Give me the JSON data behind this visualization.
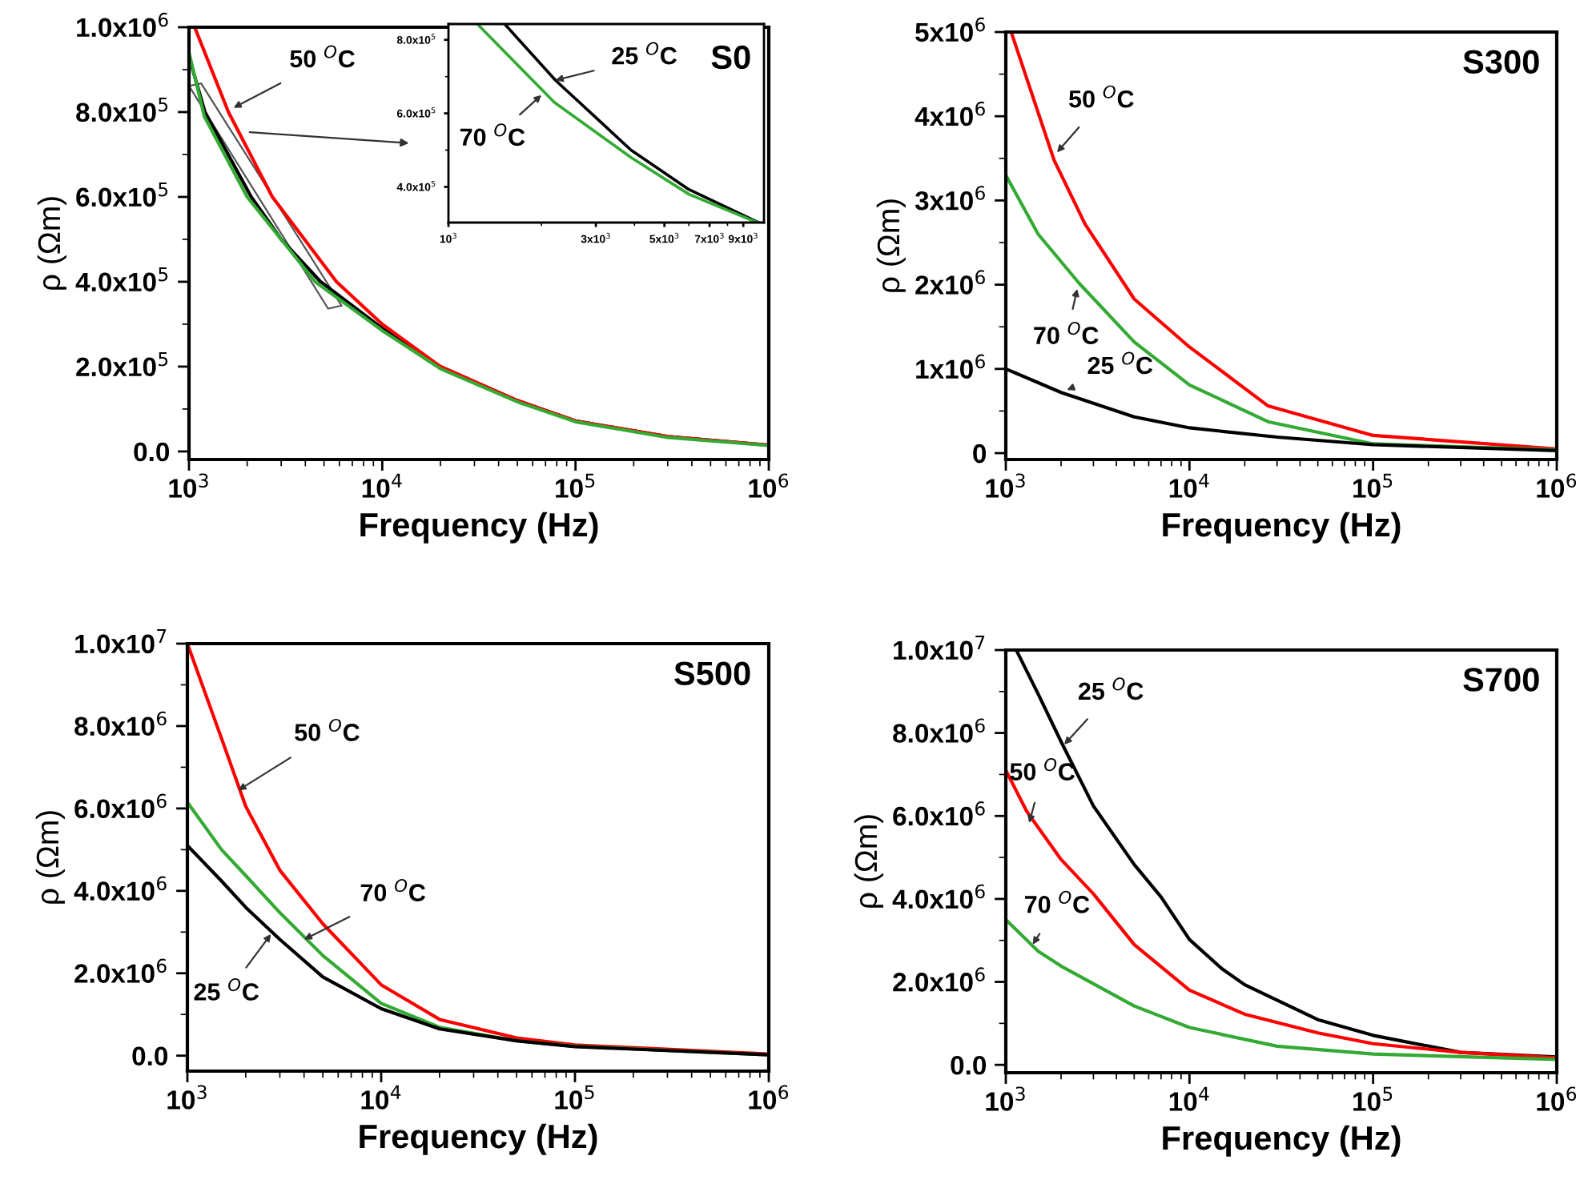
{
  "chart_data": [
    {
      "type": "line",
      "title": "S0",
      "xlabel": "Frequency (Hz)",
      "ylabel": "ρ (Ωm)",
      "log": "x",
      "grid": false,
      "xlim": [
        1000,
        1000000
      ],
      "xticks": [
        {
          "value": 1000,
          "label": "10$^{3}$"
        },
        {
          "value": 10000,
          "label": "10$^{4}$"
        },
        {
          "value": 100000,
          "label": "10$^{5}$"
        },
        {
          "value": 1000000,
          "label": "10$^{6}$"
        }
      ],
      "ylim": [
        -19000,
        1000000
      ],
      "yticks": [
        {
          "value": 0,
          "label": "0.0"
        },
        {
          "value": 200000,
          "label": "2.0x10$^{5}$"
        },
        {
          "value": 400000,
          "label": "4.0x10$^{5}$"
        },
        {
          "value": 600000,
          "label": "6.0x10$^{5}$"
        },
        {
          "value": 800000,
          "label": "8.0x10$^{5}$"
        },
        {
          "value": 1000000,
          "label": "1.0x10$^{6}$"
        }
      ],
      "series": [
        {
          "color": "#000000",
          "x": [
            1000,
            1210,
            2100,
            3000,
            4800,
            10000,
            20000,
            50000,
            100000,
            300000,
            1000000
          ],
          "values": [
            930000,
            800000,
            600000,
            500000,
            400000,
            290000,
            200000,
            120000,
            72000,
            35000,
            15000
          ]
        },
        {
          "color": "#ff0000",
          "x": [
            1070,
            1600,
            2700,
            5800,
            10000,
            20000,
            50000,
            100000,
            300000,
            1000000
          ],
          "values": [
            1000000,
            800000,
            600000,
            400000,
            300000,
            200000,
            120000,
            72000,
            35000,
            15000
          ]
        },
        {
          "color": "#33aa33",
          "x": [
            1000,
            1200,
            2000,
            4500,
            10000,
            20000,
            50000,
            100000,
            300000,
            1000000
          ],
          "values": [
            940000,
            790000,
            600000,
            400000,
            285000,
            195000,
            117000,
            70000,
            33000,
            14000
          ]
        }
      ],
      "annotations": [
        {
          "text": "50 $^{O}$C",
          "x": 1700,
          "y": 810000
        }
      ]
    },
    {
      "type": "line",
      "log": "x",
      "grid": false,
      "xlim": [
        1000,
        10500
      ],
      "xticks": [
        {
          "value": 1000,
          "label": "10$^{3}$"
        },
        {
          "value": 3000,
          "label": "3x10$^{3}$"
        },
        {
          "value": 5000,
          "label": "5x10$^{3}$"
        },
        {
          "value": 7000,
          "label": "7x10$^{3}$"
        },
        {
          "value": 9000,
          "label": "9x10$^{3}$"
        }
      ],
      "ylim": [
        303000,
        843000
      ],
      "yticks": [
        {
          "value": 400000,
          "label": "4.0x10$^{5}$"
        },
        {
          "value": 600000,
          "label": "6.0x10$^{5}$"
        },
        {
          "value": 800000,
          "label": "8.0x10$^{5}$"
        }
      ],
      "series": [
        {
          "color": "#000000",
          "x": [
            1520,
            2220,
            3900,
            6000,
            10100
          ],
          "values": [
            843000,
            690000,
            500000,
            393000,
            303000
          ]
        },
        {
          "color": "#33aa33",
          "x": [
            1240,
            2200,
            3900,
            6000,
            10000
          ],
          "values": [
            843000,
            630000,
            480000,
            380000,
            303000
          ]
        }
      ],
      "annotations": [
        {
          "text": "25 $^{O}$C",
          "x": 2220,
          "y": 690000
        },
        {
          "text": "70 $^{O}$C",
          "x": 2000,
          "y": 650000
        }
      ]
    },
    {
      "type": "line",
      "title": "S300",
      "xlabel": "Frequency (Hz)",
      "ylabel": "ρ (Ωm)",
      "log": "x",
      "grid": false,
      "xlim": [
        1000,
        1000000
      ],
      "xticks": [
        {
          "value": 1000,
          "label": "10$^{3}$"
        },
        {
          "value": 10000,
          "label": "10$^{4}$"
        },
        {
          "value": 100000,
          "label": "10$^{5}$"
        },
        {
          "value": 1000000,
          "label": "10$^{6}$"
        }
      ],
      "ylim": [
        -76000,
        5000000
      ],
      "yticks": [
        0,
        {
          "value": 1000000,
          "label": "1x10$^{6}$"
        },
        {
          "value": 2000000,
          "label": "2x10$^{6}$"
        },
        {
          "value": 3000000,
          "label": "3x10$^{6}$"
        },
        {
          "value": 4000000,
          "label": "4x10$^{6}$"
        },
        {
          "value": 5000000,
          "label": "5x10$^{6}$"
        }
      ],
      "series": [
        {
          "color": "#ff0000",
          "x": [
            1070,
            1830,
            2700,
            5000,
            10000,
            26800,
            100000,
            1000000
          ],
          "values": [
            5000000,
            3480000,
            2720000,
            1830000,
            1260000,
            560000,
            210000,
            50000
          ]
        },
        {
          "color": "#33aa33",
          "x": [
            1000,
            1500,
            2500,
            5000,
            10000,
            27000,
            100000,
            1000000
          ],
          "values": [
            3300000,
            2600000,
            2020000,
            1320000,
            810000,
            370000,
            110000,
            40000
          ]
        },
        {
          "color": "#000000",
          "x": [
            1000,
            2000,
            5000,
            10000,
            30000,
            100000,
            1000000
          ],
          "values": [
            1000000,
            720000,
            430000,
            300000,
            190000,
            100000,
            30000
          ]
        }
      ],
      "annotations": [
        {
          "text": "50 $^{O}$C",
          "x": 1900,
          "y": 3570000
        },
        {
          "text": "70 $^{O}$C",
          "x": 2450,
          "y": 1950000
        },
        {
          "text": "25 $^{O}$C",
          "x": 2150,
          "y": 750000
        }
      ]
    },
    {
      "type": "line",
      "title": "S500",
      "xlabel": "Frequency (Hz)",
      "ylabel": "ρ (Ωm)",
      "log": "x",
      "grid": false,
      "xlim": [
        1000,
        1000000
      ],
      "xticks": [
        {
          "value": 1000,
          "label": "10$^{3}$"
        },
        {
          "value": 10000,
          "label": "10$^{4}$"
        },
        {
          "value": 100000,
          "label": "10$^{5}$"
        },
        {
          "value": 1000000,
          "label": "10$^{6}$"
        }
      ],
      "ylim": [
        -375000,
        10000000
      ],
      "yticks": [
        {
          "value": 0,
          "label": "0.0"
        },
        {
          "value": 2000000,
          "label": "2.0x10$^{6}$"
        },
        {
          "value": 4000000,
          "label": "4.0x10$^{6}$"
        },
        {
          "value": 6000000,
          "label": "6.0x10$^{6}$"
        },
        {
          "value": 8000000,
          "label": "8.0x10$^{6}$"
        },
        {
          "value": 10000000,
          "label": "1.0x10$^{7}$"
        }
      ],
      "series": [
        {
          "color": "#ff0000",
          "x": [
            1000,
            1500,
            2000,
            3000,
            5000,
            10000,
            20000,
            50000,
            100000,
            1000000
          ],
          "values": [
            10000000,
            7700000,
            6050000,
            4500000,
            3200000,
            1720000,
            880000,
            430000,
            260000,
            40000
          ]
        },
        {
          "color": "#33aa33",
          "x": [
            1000,
            1500,
            2000,
            3000,
            5000,
            10000,
            20000,
            50000,
            100000,
            1000000
          ],
          "values": [
            6150000,
            5000000,
            4370000,
            3470000,
            2430000,
            1270000,
            690000,
            360000,
            230000,
            20000
          ]
        },
        {
          "color": "#000000",
          "x": [
            1000,
            1500,
            2000,
            3000,
            5000,
            10000,
            20000,
            50000,
            100000,
            1000000
          ],
          "values": [
            5100000,
            4240000,
            3600000,
            2820000,
            1910000,
            1140000,
            650000,
            360000,
            220000,
            20000
          ]
        }
      ],
      "annotations": [
        {
          "text": "50 $^{O}$C",
          "x": 1830,
          "y": 6440000
        },
        {
          "text": "70 $^{O}$C",
          "x": 4000,
          "y": 2820000
        },
        {
          "text": "25 $^{O}$C",
          "x": 2700,
          "y": 2950000
        }
      ]
    },
    {
      "type": "line",
      "title": "S700",
      "xlabel": "Frequency (Hz)",
      "ylabel": "ρ (Ωm)",
      "log": "x",
      "grid": false,
      "xlim": [
        1000,
        1000000
      ],
      "xticks": [
        {
          "value": 1000,
          "label": "10$^{3}$"
        },
        {
          "value": 10000,
          "label": "10$^{4}$"
        },
        {
          "value": 100000,
          "label": "10$^{5}$"
        },
        {
          "value": 1000000,
          "label": "10$^{6}$"
        }
      ],
      "ylim": [
        -190000,
        10000000
      ],
      "yticks": [
        {
          "value": 0,
          "label": "0.0"
        },
        {
          "value": 2000000,
          "label": "2.0x10$^{6}$"
        },
        {
          "value": 4000000,
          "label": "4.0x10$^{6}$"
        },
        {
          "value": 6000000,
          "label": "6.0x10$^{6}$"
        },
        {
          "value": 8000000,
          "label": "8.0x10$^{6}$"
        },
        {
          "value": 10000000,
          "label": "1.0x10$^{7}$"
        }
      ],
      "series": [
        {
          "color": "#000000",
          "x": [
            1140,
            1500,
            2000,
            3000,
            5000,
            7000,
            10000,
            15000,
            20000,
            50000,
            100000,
            300000,
            1000000
          ],
          "values": [
            10000000,
            8940000,
            7790000,
            6240000,
            4830000,
            4050000,
            3020000,
            2320000,
            1930000,
            1090000,
            710000,
            300000,
            190000
          ]
        },
        {
          "color": "#ff0000",
          "x": [
            1000,
            1300,
            2000,
            3000,
            5000,
            10000,
            20000,
            50000,
            100000,
            300000,
            1000000
          ],
          "values": [
            7100000,
            6110000,
            4950000,
            4120000,
            2900000,
            1800000,
            1220000,
            770000,
            510000,
            300000,
            170000
          ]
        },
        {
          "color": "#33aa33",
          "x": [
            1000,
            1500,
            2000,
            5000,
            10000,
            30000,
            100000,
            1000000
          ],
          "values": [
            3500000,
            2740000,
            2380000,
            1420000,
            900000,
            450000,
            260000,
            130000
          ]
        }
      ],
      "annotations": [
        {
          "text": "25 $^{O}$C",
          "x": 2080,
          "y": 7720000
        },
        {
          "text": "50 $^{O}$C",
          "x": 1340,
          "y": 5830000
        },
        {
          "text": "70 $^{O}$C",
          "x": 1400,
          "y": 2900000
        }
      ]
    }
  ]
}
